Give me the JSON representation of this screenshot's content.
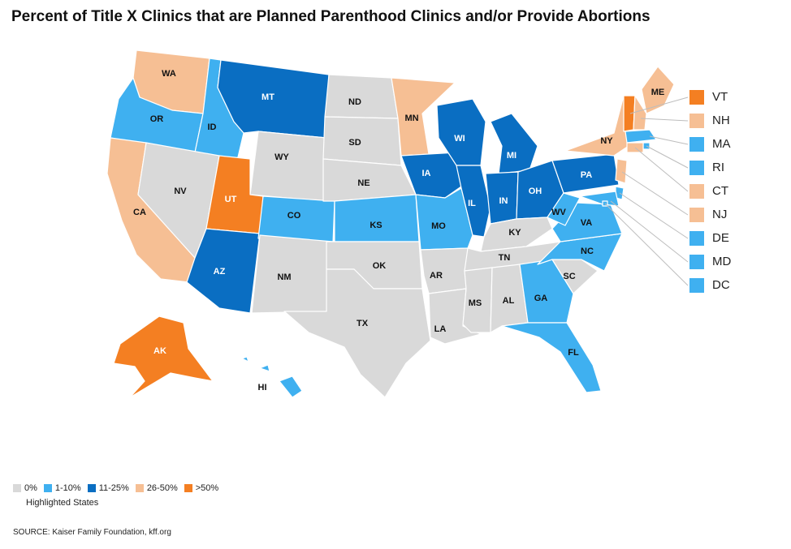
{
  "title": "Percent of Title X Clinics that are Planned Parenthood Clinics and/or Provide Abortions",
  "colors": {
    "c0": "#d9d9d9",
    "c1": "#3fb0f0",
    "c2": "#0a6ec2",
    "c3": "#f6bf94",
    "c4": "#f47f22"
  },
  "legend": {
    "items": [
      {
        "label": "0%",
        "color": "#d9d9d9"
      },
      {
        "label": "1-10%",
        "color": "#3fb0f0"
      },
      {
        "label": "11-25%",
        "color": "#0a6ec2"
      },
      {
        "label": "26-50%",
        "color": "#f6bf94"
      },
      {
        "label": ">50%",
        "color": "#f47f22"
      }
    ],
    "subtitle": "Highlighted States"
  },
  "source": "SOURCE: Kaiser Family Foundation, kff.org",
  "states": [
    {
      "abbr": "WA",
      "cat": "c3"
    },
    {
      "abbr": "OR",
      "cat": "c1"
    },
    {
      "abbr": "CA",
      "cat": "c3"
    },
    {
      "abbr": "ID",
      "cat": "c1"
    },
    {
      "abbr": "NV",
      "cat": "c0"
    },
    {
      "abbr": "MT",
      "cat": "c2"
    },
    {
      "abbr": "WY",
      "cat": "c0"
    },
    {
      "abbr": "UT",
      "cat": "c4"
    },
    {
      "abbr": "AZ",
      "cat": "c2"
    },
    {
      "abbr": "CO",
      "cat": "c1"
    },
    {
      "abbr": "NM",
      "cat": "c0"
    },
    {
      "abbr": "ND",
      "cat": "c0"
    },
    {
      "abbr": "SD",
      "cat": "c0"
    },
    {
      "abbr": "NE",
      "cat": "c0"
    },
    {
      "abbr": "KS",
      "cat": "c1"
    },
    {
      "abbr": "OK",
      "cat": "c0"
    },
    {
      "abbr": "TX",
      "cat": "c0"
    },
    {
      "abbr": "MN",
      "cat": "c3"
    },
    {
      "abbr": "IA",
      "cat": "c2"
    },
    {
      "abbr": "MO",
      "cat": "c1"
    },
    {
      "abbr": "AR",
      "cat": "c0"
    },
    {
      "abbr": "LA",
      "cat": "c0"
    },
    {
      "abbr": "WI",
      "cat": "c2"
    },
    {
      "abbr": "IL",
      "cat": "c2"
    },
    {
      "abbr": "MI",
      "cat": "c2"
    },
    {
      "abbr": "IN",
      "cat": "c2"
    },
    {
      "abbr": "OH",
      "cat": "c2"
    },
    {
      "abbr": "KY",
      "cat": "c0"
    },
    {
      "abbr": "TN",
      "cat": "c0"
    },
    {
      "abbr": "MS",
      "cat": "c0"
    },
    {
      "abbr": "AL",
      "cat": "c0"
    },
    {
      "abbr": "GA",
      "cat": "c1"
    },
    {
      "abbr": "FL",
      "cat": "c1"
    },
    {
      "abbr": "SC",
      "cat": "c0"
    },
    {
      "abbr": "NC",
      "cat": "c1"
    },
    {
      "abbr": "VA",
      "cat": "c1"
    },
    {
      "abbr": "WV",
      "cat": "c1"
    },
    {
      "abbr": "PA",
      "cat": "c2"
    },
    {
      "abbr": "NY",
      "cat": "c3"
    },
    {
      "abbr": "ME",
      "cat": "c3"
    },
    {
      "abbr": "AK",
      "cat": "c4"
    },
    {
      "abbr": "HI",
      "cat": "c1"
    }
  ],
  "callouts": [
    {
      "abbr": "VT",
      "cat": "c4"
    },
    {
      "abbr": "NH",
      "cat": "c3"
    },
    {
      "abbr": "MA",
      "cat": "c1"
    },
    {
      "abbr": "RI",
      "cat": "c1"
    },
    {
      "abbr": "CT",
      "cat": "c3"
    },
    {
      "abbr": "NJ",
      "cat": "c3"
    },
    {
      "abbr": "DE",
      "cat": "c1"
    },
    {
      "abbr": "MD",
      "cat": "c1"
    },
    {
      "abbr": "DC",
      "cat": "c1"
    }
  ]
}
